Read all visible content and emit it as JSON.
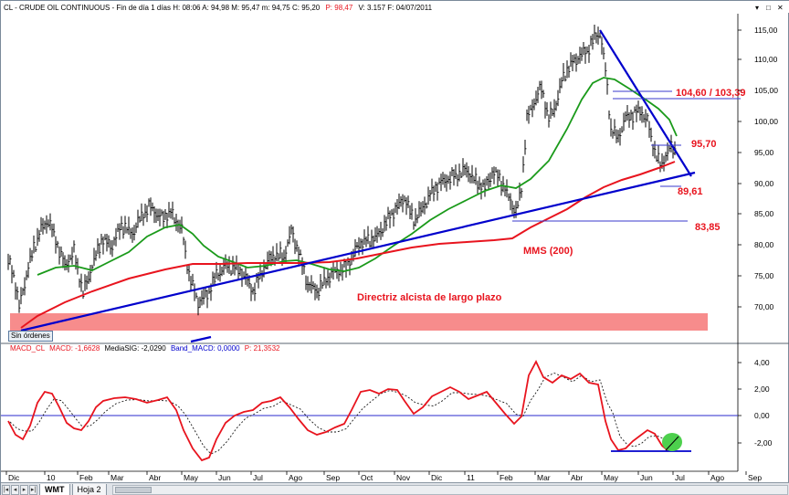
{
  "header": {
    "text_pre": "CL - CRUDE OIL CONTINUOUS - Fin de día 1 días  H: 08:06  A: 94,98  M: 95,47  m: 94,75  C: 95,20",
    "text_p": "P: 98,47",
    "text_post": "V: 3.157  F: 04/07/2011"
  },
  "price_axis": [
    "115,00",
    "110,00",
    "105,00",
    "100,00",
    "95,00",
    "90,00",
    "85,00",
    "80,00",
    "75,00",
    "70,00"
  ],
  "macd_axis": [
    "4,00",
    "2,00",
    "0,00",
    "-2,00"
  ],
  "annotations": {
    "target1": "104,60 / 103,39",
    "level_9570": "95,70",
    "level_8961": "89,61",
    "level_8385": "83,85",
    "mms": "MMS (200)",
    "trendline": "Directriz alcista de largo plazo"
  },
  "macd_header": {
    "p1": "MACD_CL",
    "p2": "MACD: -1,6628",
    "p3": "MediaSIG: -2,0290",
    "p4": "Band_MACD: 0,0000",
    "p5": "P: 21,3532"
  },
  "months": [
    "Dic",
    "10",
    "Feb",
    "Mar",
    "Abr",
    "May",
    "Jun",
    "Jul",
    "Ago",
    "Sep",
    "Oct",
    "Nov",
    "Dic",
    "11",
    "Feb",
    "Mar",
    "Abr",
    "May",
    "Jun",
    "Jul",
    "Ago",
    "Sep"
  ],
  "status": {
    "orders": "Sin órdenes"
  },
  "tabs": {
    "active": "WMT",
    "second": "Hoja 2"
  },
  "colors": {
    "price_bars": "#000000",
    "ma_green": "#1a9a1a",
    "ma_red": "#e8141e",
    "trend_blue": "#0000cc",
    "support_band": "#f78c8c",
    "macd_line": "#e8141e",
    "signal_line": "#1a1a1a",
    "highlight": "#4dd04d"
  }
}
